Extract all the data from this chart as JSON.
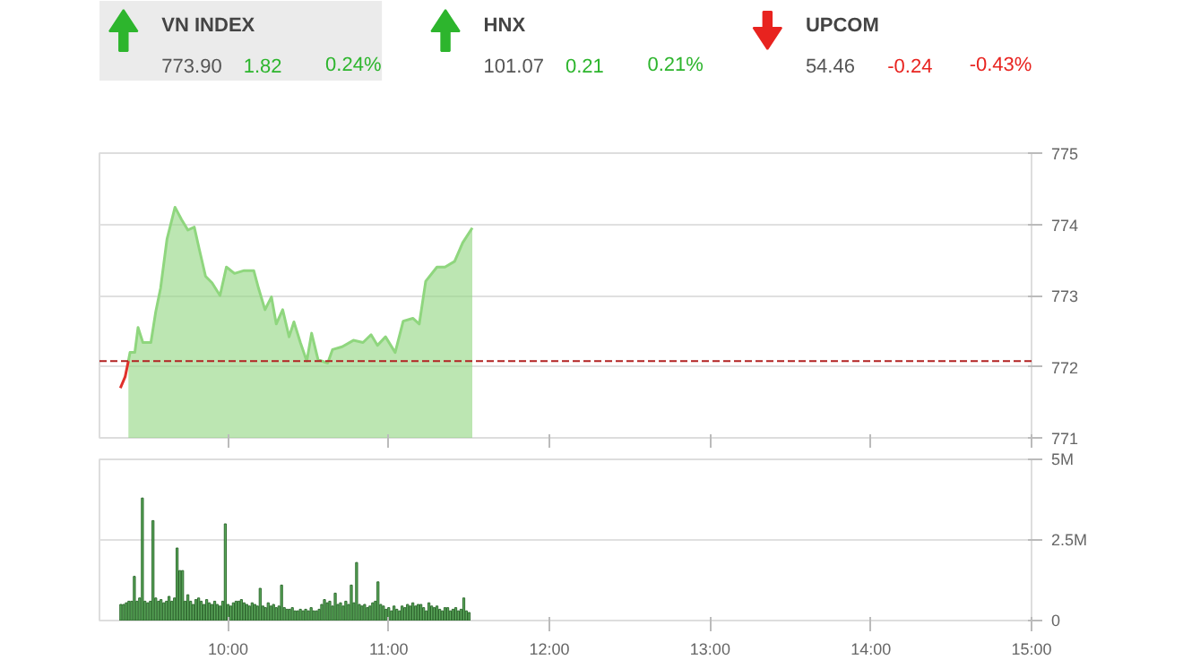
{
  "chart_data": [
    {
      "type": "other",
      "categories": [
        "VN INDEX",
        "HNX",
        "UPCOM"
      ],
      "value_labels": [
        "773.90",
        "101.07",
        "54.46"
      ],
      "annotations": [
        "1.82",
        "0.24%",
        "0.21",
        "0.21%",
        "-0.24",
        "-0.43%"
      ],
      "colors": [
        "#2db52d",
        "#2db52d",
        "#e8231f"
      ]
    },
    {
      "type": "area",
      "xlim": [
        9.2,
        15
      ],
      "ylim": [
        771,
        775
      ],
      "yticks": [
        771,
        772,
        773,
        774,
        775
      ],
      "xticks": [
        {
          "value": 10,
          "label": null
        },
        {
          "value": 11,
          "label": null
        },
        {
          "value": 12,
          "label": null
        },
        {
          "value": 13,
          "label": null
        },
        {
          "value": 14,
          "label": null
        },
        {
          "value": 15,
          "label": null
        }
      ],
      "tick_labels": "y",
      "grid": "y",
      "ref_lines": [
        {
          "axis": "y",
          "value": 772.08,
          "label": null,
          "color": "#b22222",
          "line_style": "dashed"
        }
      ],
      "series": [
        {
          "type": "area",
          "color": "#8fd67e",
          "x": [
            9.38,
            9.39,
            9.42,
            9.44,
            9.47,
            9.52,
            9.55,
            9.58,
            9.62,
            9.67,
            9.71,
            9.75,
            9.79,
            9.82,
            9.86,
            9.9,
            9.95,
            9.99,
            10.04,
            10.1,
            10.16,
            10.19,
            10.23,
            10.27,
            10.3,
            10.34,
            10.38,
            10.41,
            10.45,
            10.49,
            10.52,
            10.56,
            10.62,
            10.65,
            10.71,
            10.78,
            10.84,
            10.89,
            10.93,
            10.98,
            11.04,
            11.09,
            11.15,
            11.19,
            11.23,
            11.3,
            11.35,
            11.41,
            11.46,
            11.52
          ],
          "values": [
            772.08,
            772.2,
            772.2,
            772.55,
            772.34,
            772.34,
            772.77,
            773.1,
            773.79,
            774.24,
            774.07,
            773.92,
            773.96,
            773.66,
            773.27,
            773.18,
            773.0,
            773.4,
            773.31,
            773.35,
            773.35,
            773.1,
            772.8,
            772.98,
            772.6,
            772.8,
            772.42,
            772.63,
            772.34,
            772.08,
            772.47,
            772.1,
            772.05,
            772.24,
            772.28,
            772.37,
            772.34,
            772.45,
            772.3,
            772.42,
            772.2,
            772.64,
            772.68,
            772.6,
            773.2,
            773.4,
            773.4,
            773.48,
            773.74,
            773.95
          ]
        },
        {
          "type": "line",
          "color": "#e0312b",
          "x": [
            9.33,
            9.36,
            9.38
          ],
          "values": [
            771.7,
            771.86,
            772.08
          ]
        }
      ]
    },
    {
      "type": "bar",
      "xlim": [
        9.2,
        15
      ],
      "ylim": [
        0,
        5
      ],
      "yticks": [
        0,
        {
          "value": 2.5,
          "label": "2.5M"
        },
        {
          "value": 5,
          "label": "5M"
        }
      ],
      "xticks": [
        {
          "value": 10,
          "label": "10:00"
        },
        {
          "value": 11,
          "label": "11:00"
        },
        {
          "value": 12,
          "label": "12:00"
        },
        {
          "value": 13,
          "label": "13:00"
        },
        {
          "value": 14,
          "label": "14:00"
        },
        {
          "value": 15,
          "label": "15:00"
        }
      ],
      "grid": "y",
      "series": [
        {
          "color": "#5aa85a",
          "x": [
            9.333,
            9.35,
            9.367,
            9.383,
            9.4,
            9.417,
            9.433,
            9.45,
            9.467,
            9.483,
            9.5,
            9.517,
            9.533,
            9.55,
            9.567,
            9.583,
            9.6,
            9.617,
            9.633,
            9.65,
            9.667,
            9.683,
            9.7,
            9.717,
            9.733,
            9.75,
            9.767,
            9.783,
            9.8,
            9.817,
            9.833,
            9.85,
            9.867,
            9.883,
            9.9,
            9.917,
            9.933,
            9.95,
            9.967,
            9.983,
            10.0,
            10.017,
            10.033,
            10.05,
            10.067,
            10.083,
            10.1,
            10.117,
            10.133,
            10.15,
            10.167,
            10.183,
            10.2,
            10.217,
            10.233,
            10.25,
            10.267,
            10.283,
            10.3,
            10.317,
            10.333,
            10.35,
            10.367,
            10.383,
            10.4,
            10.417,
            10.433,
            10.45,
            10.467,
            10.483,
            10.5,
            10.517,
            10.533,
            10.55,
            10.567,
            10.583,
            10.6,
            10.617,
            10.633,
            10.65,
            10.667,
            10.683,
            10.7,
            10.717,
            10.733,
            10.75,
            10.767,
            10.783,
            10.8,
            10.817,
            10.833,
            10.85,
            10.867,
            10.883,
            10.9,
            10.917,
            10.933,
            10.95,
            10.967,
            10.983,
            11.0,
            11.017,
            11.033,
            11.05,
            11.067,
            11.083,
            11.1,
            11.117,
            11.133,
            11.15,
            11.167,
            11.183,
            11.2,
            11.217,
            11.233,
            11.25,
            11.267,
            11.283,
            11.3,
            11.317,
            11.333,
            11.35,
            11.367,
            11.383,
            11.4,
            11.417,
            11.433,
            11.45,
            11.467,
            11.483,
            11.5
          ],
          "values": [
            0.5,
            0.5,
            0.55,
            0.6,
            0.6,
            1.37,
            0.6,
            0.7,
            3.8,
            0.6,
            0.55,
            0.6,
            3.1,
            0.7,
            0.6,
            0.65,
            0.55,
            0.6,
            0.75,
            0.6,
            0.7,
            2.25,
            1.55,
            1.55,
            0.6,
            0.8,
            0.6,
            0.5,
            0.65,
            0.7,
            0.6,
            0.5,
            0.65,
            0.55,
            0.5,
            0.6,
            0.5,
            0.45,
            0.6,
            3.0,
            0.5,
            0.45,
            0.55,
            0.6,
            0.6,
            0.65,
            0.55,
            0.5,
            0.45,
            0.55,
            0.5,
            0.45,
            1.0,
            0.45,
            0.4,
            0.55,
            0.45,
            0.5,
            0.4,
            0.45,
            1.1,
            0.4,
            0.35,
            0.35,
            0.4,
            0.3,
            0.3,
            0.35,
            0.3,
            0.35,
            0.3,
            0.4,
            0.3,
            0.3,
            0.35,
            0.5,
            0.65,
            0.55,
            0.6,
            0.45,
            0.85,
            0.5,
            0.55,
            0.45,
            0.6,
            0.5,
            1.1,
            0.55,
            1.8,
            0.5,
            0.45,
            0.5,
            0.4,
            0.45,
            0.55,
            0.6,
            1.2,
            0.5,
            0.45,
            0.35,
            0.4,
            0.3,
            0.45,
            0.35,
            0.3,
            0.45,
            0.4,
            0.5,
            0.45,
            0.55,
            0.45,
            0.5,
            0.5,
            0.4,
            0.3,
            0.55,
            0.45,
            0.4,
            0.45,
            0.35,
            0.3,
            0.4,
            0.4,
            0.3,
            0.35,
            0.4,
            0.3,
            0.35,
            0.7,
            0.3,
            0.25
          ]
        }
      ]
    }
  ]
}
